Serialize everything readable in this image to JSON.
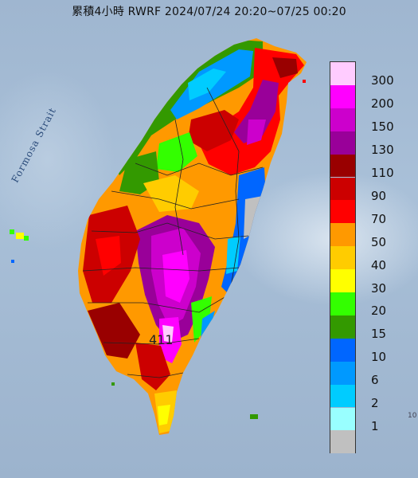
{
  "title": "累積4小時 RWRF 2024/07/24 20:20~07/25 00:20",
  "strait_label": "Formosa Strait",
  "peak_value": "411",
  "edge_mark": "10",
  "legend": [
    {
      "label": "300",
      "color": "#ffccff"
    },
    {
      "label": "200",
      "color": "#ff00ff"
    },
    {
      "label": "150",
      "color": "#cc00cc"
    },
    {
      "label": "130",
      "color": "#990099"
    },
    {
      "label": "110",
      "color": "#990000"
    },
    {
      "label": "90",
      "color": "#cc0000"
    },
    {
      "label": "70",
      "color": "#ff0000"
    },
    {
      "label": "50",
      "color": "#ff9900"
    },
    {
      "label": "40",
      "color": "#ffcc00"
    },
    {
      "label": "30",
      "color": "#ffff00"
    },
    {
      "label": "20",
      "color": "#33ff00"
    },
    {
      "label": "15",
      "color": "#339900"
    },
    {
      "label": "10",
      "color": "#0066ff"
    },
    {
      "label": "6",
      "color": "#0099ff"
    },
    {
      "label": "2",
      "color": "#00ccff"
    },
    {
      "label": "1",
      "color": "#99ffff"
    },
    {
      "label": "",
      "color": "#c0c0c0"
    }
  ]
}
